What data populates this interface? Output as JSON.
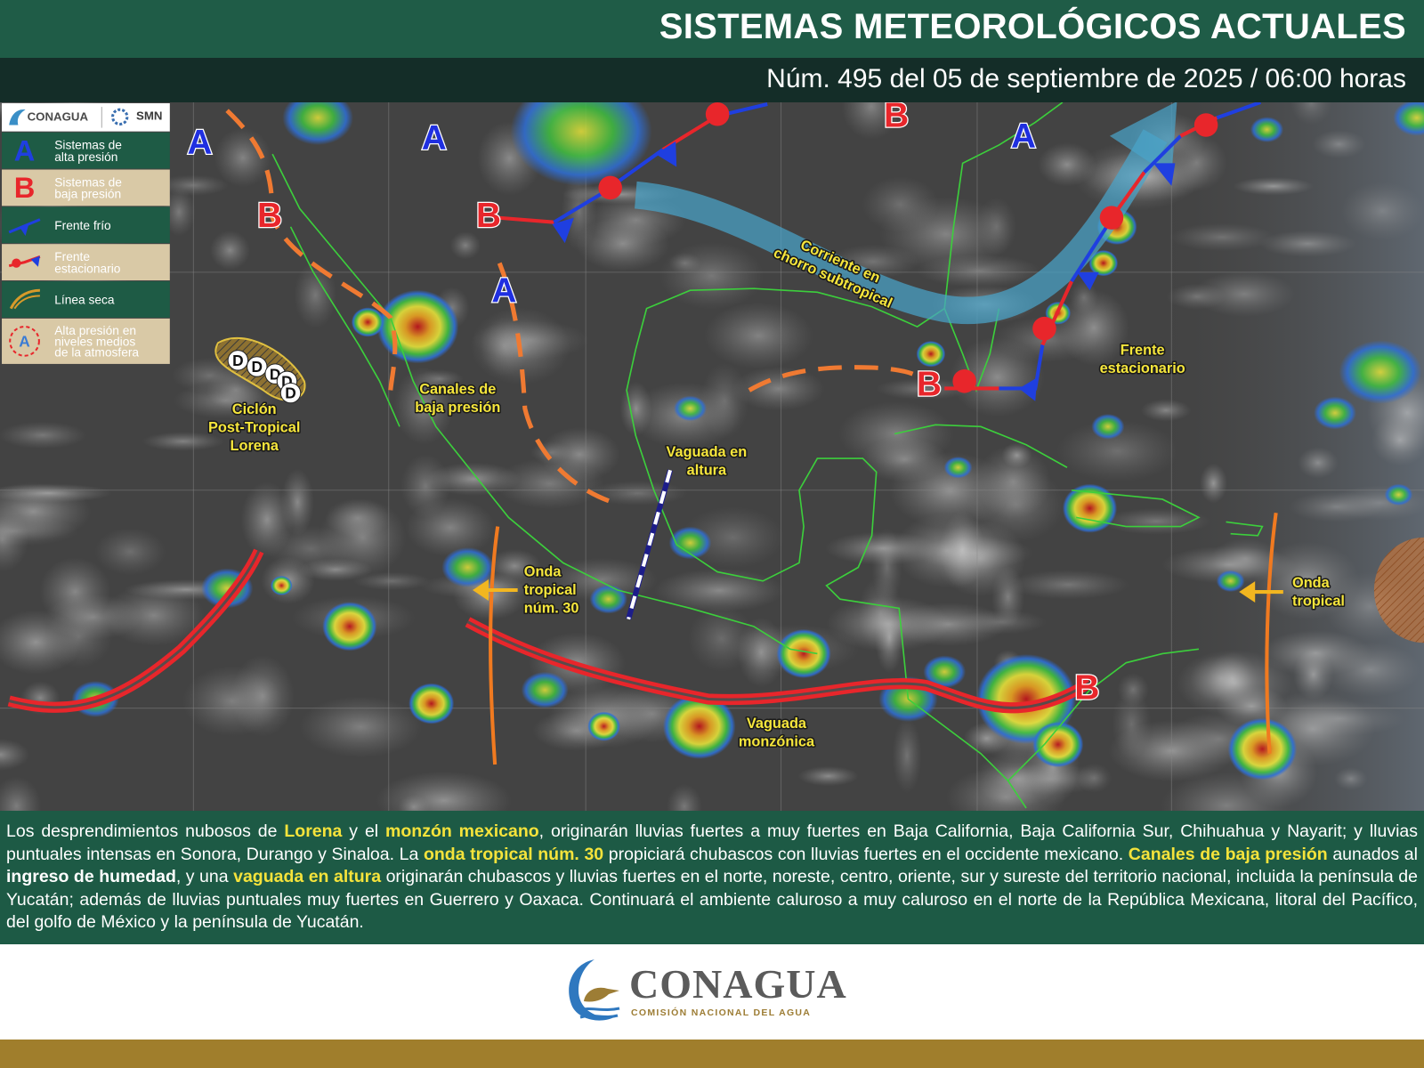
{
  "header": {
    "title": "SISTEMAS METEOROLÓGICOS ACTUALES",
    "subtitle": "Núm. 495 del 05 de septiembre de 2025 / 06:00 horas"
  },
  "legend": {
    "logo_left": "CONAGUA",
    "logo_right": "SMN",
    "items": [
      {
        "symbol": "A",
        "color": "#1f3fe0",
        "lines": [
          "Sistemas de",
          "alta presión"
        ]
      },
      {
        "symbol": "B",
        "color": "#e8262b",
        "lines": [
          "Sistemas de",
          "baja presión"
        ]
      },
      {
        "lines": [
          "Frente frío"
        ]
      },
      {
        "lines": [
          "Frente",
          "estacionario"
        ]
      },
      {
        "lines": [
          "Línea seca"
        ]
      },
      {
        "symbol": "A",
        "color": "#3a7bd5",
        "lines": [
          "Alta presión en",
          "niveles medios",
          "de la atmosfera"
        ]
      }
    ]
  },
  "map": {
    "pressure_systems": [
      {
        "letter": "A",
        "color": "#1f2fe0"
      },
      {
        "letter": "A",
        "color": "#1f2fe0"
      },
      {
        "letter": "A",
        "color": "#1f2fe0"
      },
      {
        "letter": "A",
        "color": "#1f2fe0"
      },
      {
        "letter": "B",
        "color": "#e8262b"
      },
      {
        "letter": "B",
        "color": "#e8262b"
      },
      {
        "letter": "B",
        "color": "#e8262b"
      },
      {
        "letter": "B",
        "color": "#e8262b"
      },
      {
        "letter": "B",
        "color": "#e8262b"
      }
    ],
    "cyclone_marks": [
      "D",
      "D",
      "D",
      "D",
      "D"
    ],
    "labels": [
      {
        "lines": [
          "Ciclón",
          "Post-Tropical",
          "Lorena"
        ]
      },
      {
        "lines": [
          "Canales de",
          "baja presión"
        ]
      },
      {
        "lines": [
          "Vaguada en",
          "altura"
        ]
      },
      {
        "lines": [
          "Onda",
          "tropical",
          "núm. 30"
        ]
      },
      {
        "lines": [
          "Vaguada",
          "monzónica"
        ]
      },
      {
        "lines": [
          "Corriente en",
          "chorro subtropical"
        ]
      },
      {
        "lines": [
          "Frente",
          "estacionario"
        ]
      },
      {
        "lines": [
          "Onda",
          "tropical"
        ]
      }
    ]
  },
  "bulletin": {
    "segments": [
      {
        "text": "Los desprendimientos nubosos de "
      },
      {
        "text": "Lorena",
        "style": "highlight"
      },
      {
        "text": " y el "
      },
      {
        "text": "monzón mexicano",
        "style": "highlight"
      },
      {
        "text": ", originarán lluvias fuertes a muy fuertes en Baja California, Baja California Sur, Chihuahua y Nayarit; y lluvias puntuales intensas en Sonora, Durango y Sinaloa. La "
      },
      {
        "text": "onda tropical núm. 30",
        "style": "highlight"
      },
      {
        "text": " propiciará chubascos con lluvias fuertes en el occidente mexicano. "
      },
      {
        "text": "Canales de baja presión",
        "style": "highlight"
      },
      {
        "text": " aunados al "
      },
      {
        "text": "ingreso de humedad",
        "style": "strong"
      },
      {
        "text": ", y una "
      },
      {
        "text": "vaguada en altura",
        "style": "highlight"
      },
      {
        "text": " originarán chubascos y lluvias fuertes en el norte, noreste, centro, oriente, sur y sureste del territorio nacional, incluida la península de Yucatán; además de lluvias puntuales muy fuertes en Guerrero y Oaxaca. Continuará el ambiente caluroso a muy caluroso en el norte de la República Mexicana, litoral del Pacífico, del golfo de México y la península de Yucatán."
      }
    ]
  },
  "footer": {
    "logo": "CONAGUA",
    "tagline": "COMISIÓN NACIONAL DEL AGUA"
  }
}
